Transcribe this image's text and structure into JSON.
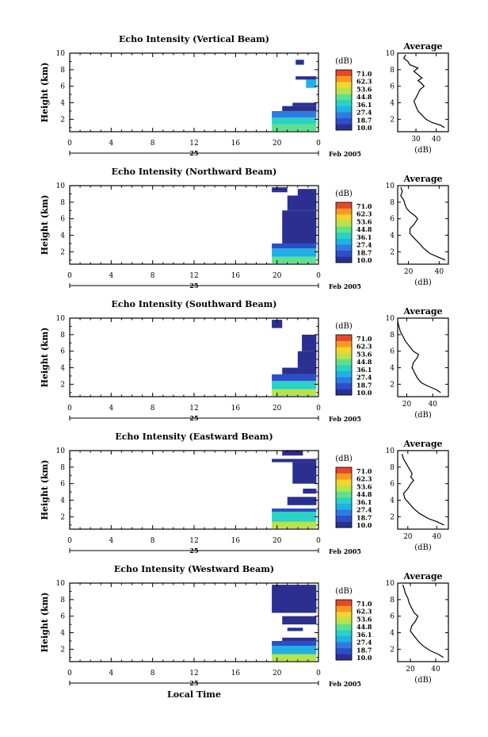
{
  "figure": {
    "xlabel": "Local Time",
    "date_day": "25",
    "date_month_year": "Feb 2005"
  },
  "colorbar": {
    "unit": "(dB)",
    "ticks": [
      "71.0",
      "62.3",
      "53.6",
      "44.8",
      "36.1",
      "27.4",
      "18.7",
      "10.0"
    ],
    "colors": [
      "#2b2f8f",
      "#2d4ec9",
      "#2f7be0",
      "#1fb1e6",
      "#29d2c4",
      "#5fe08d",
      "#b7e34b",
      "#f1d52f",
      "#f79a24",
      "#e5492a"
    ]
  },
  "chart_data": [
    {
      "type": "heatmap",
      "title": "Echo Intensity (Vertical Beam)",
      "ylabel": "Height (km)",
      "xlim": [
        0,
        24
      ],
      "ylim": [
        0.5,
        10
      ],
      "xticks": [
        "0",
        "4",
        "8",
        "12",
        "16",
        "20",
        "0"
      ],
      "yticks": [
        "2",
        "4",
        "6",
        "8",
        "10"
      ],
      "cells": [
        {
          "t0": 19.5,
          "t1": 23.8,
          "h0": 0.6,
          "h1": 1.4,
          "v": 45
        },
        {
          "t0": 19.5,
          "t1": 23.8,
          "h0": 1.4,
          "h1": 2.2,
          "v": 38
        },
        {
          "t0": 19.5,
          "t1": 23.8,
          "h0": 2.2,
          "h1": 3.0,
          "v": 26
        },
        {
          "t0": 20.5,
          "t1": 23.8,
          "h0": 3.0,
          "h1": 3.6,
          "v": 14
        },
        {
          "t0": 21.5,
          "t1": 23.8,
          "h0": 3.6,
          "h1": 4.0,
          "v": 12
        },
        {
          "t0": 21.8,
          "t1": 23.8,
          "h0": 6.8,
          "h1": 7.2,
          "v": 12
        },
        {
          "t0": 22.8,
          "t1": 23.8,
          "h0": 5.8,
          "h1": 6.8,
          "v": 33
        },
        {
          "t0": 21.8,
          "t1": 22.6,
          "h0": 8.6,
          "h1": 9.2,
          "v": 12
        }
      ],
      "avg": {
        "xlabel": "(dB)",
        "title": "Average",
        "xlim": [
          21,
          46
        ],
        "xticks": [
          {
            "v": 30,
            "label": "30"
          },
          {
            "v": 40,
            "label": "40"
          }
        ],
        "profile": [
          [
            44,
            1.0
          ],
          [
            42,
            1.3
          ],
          [
            38,
            1.6
          ],
          [
            35,
            2.0
          ],
          [
            33,
            2.5
          ],
          [
            31,
            3.0
          ],
          [
            30,
            3.6
          ],
          [
            29,
            4.2
          ],
          [
            30,
            4.6
          ],
          [
            31,
            5.1
          ],
          [
            32,
            5.6
          ],
          [
            34,
            6.0
          ],
          [
            33,
            6.3
          ],
          [
            31,
            6.7
          ],
          [
            33,
            7.0
          ],
          [
            31,
            7.4
          ],
          [
            29,
            7.8
          ],
          [
            31,
            8.2
          ],
          [
            27,
            8.6
          ],
          [
            26,
            9.0
          ],
          [
            24,
            9.4
          ],
          [
            25,
            9.8
          ]
        ]
      }
    },
    {
      "type": "heatmap",
      "title": "Echo Intensity (Northward Beam)",
      "ylabel": "Height (km)",
      "xlim": [
        0,
        24
      ],
      "ylim": [
        0.5,
        10
      ],
      "xticks": [
        "0",
        "4",
        "8",
        "12",
        "16",
        "20",
        "0"
      ],
      "yticks": [
        "2",
        "4",
        "6",
        "8",
        "10"
      ],
      "cells": [
        {
          "t0": 19.5,
          "t1": 23.8,
          "h0": 0.6,
          "h1": 1.4,
          "v": 42
        },
        {
          "t0": 19.5,
          "t1": 23.8,
          "h0": 1.4,
          "h1": 2.4,
          "v": 33
        },
        {
          "t0": 19.5,
          "t1": 23.8,
          "h0": 2.4,
          "h1": 3.0,
          "v": 22
        },
        {
          "t0": 20.5,
          "t1": 23.8,
          "h0": 3.0,
          "h1": 7.0,
          "v": 14
        },
        {
          "t0": 21.0,
          "t1": 23.8,
          "h0": 7.0,
          "h1": 8.8,
          "v": 12
        },
        {
          "t0": 22.0,
          "t1": 23.8,
          "h0": 8.8,
          "h1": 9.6,
          "v": 11
        },
        {
          "t0": 19.5,
          "t1": 21.0,
          "h0": 9.2,
          "h1": 9.8,
          "v": 11
        }
      ],
      "avg": {
        "xlabel": "(dB)",
        "title": "Average",
        "xlim": [
          13,
          46
        ],
        "xticks": [
          {
            "v": 20,
            "label": "20"
          },
          {
            "v": 40,
            "label": "40"
          }
        ],
        "profile": [
          [
            44,
            1.0
          ],
          [
            40,
            1.3
          ],
          [
            34,
            1.8
          ],
          [
            30,
            2.4
          ],
          [
            27,
            3.0
          ],
          [
            24,
            3.6
          ],
          [
            21,
            4.2
          ],
          [
            21,
            4.8
          ],
          [
            24,
            5.4
          ],
          [
            26,
            6.0
          ],
          [
            24,
            6.4
          ],
          [
            21,
            6.8
          ],
          [
            19,
            7.2
          ],
          [
            18,
            7.6
          ],
          [
            17,
            8.2
          ],
          [
            15,
            8.8
          ],
          [
            16,
            9.3
          ],
          [
            15,
            9.8
          ]
        ]
      }
    },
    {
      "type": "heatmap",
      "title": "Echo Intensity (Southward Beam)",
      "ylabel": "Height (km)",
      "xlim": [
        0,
        24
      ],
      "ylim": [
        0.5,
        10
      ],
      "xticks": [
        "0",
        "4",
        "8",
        "12",
        "16",
        "20",
        "0"
      ],
      "yticks": [
        "2",
        "4",
        "6",
        "8",
        "10"
      ],
      "cells": [
        {
          "t0": 19.5,
          "t1": 23.8,
          "h0": 0.6,
          "h1": 1.4,
          "v": 48
        },
        {
          "t0": 19.5,
          "t1": 23.8,
          "h0": 1.4,
          "h1": 2.4,
          "v": 36
        },
        {
          "t0": 19.5,
          "t1": 23.8,
          "h0": 2.4,
          "h1": 3.2,
          "v": 22
        },
        {
          "t0": 20.5,
          "t1": 23.8,
          "h0": 3.2,
          "h1": 4.0,
          "v": 16
        },
        {
          "t0": 22.0,
          "t1": 23.8,
          "h0": 4.0,
          "h1": 6.0,
          "v": 15
        },
        {
          "t0": 22.4,
          "t1": 23.8,
          "h0": 6.0,
          "h1": 8.0,
          "v": 12
        },
        {
          "t0": 19.5,
          "t1": 20.5,
          "h0": 8.8,
          "h1": 9.8,
          "v": 11
        }
      ],
      "avg": {
        "xlabel": "(dB)",
        "title": "Average",
        "xlim": [
          13,
          52
        ],
        "xticks": [
          {
            "v": 20,
            "label": "20"
          },
          {
            "v": 40,
            "label": "40"
          }
        ],
        "profile": [
          [
            46,
            1.0
          ],
          [
            42,
            1.4
          ],
          [
            36,
            1.8
          ],
          [
            31,
            2.2
          ],
          [
            28,
            2.8
          ],
          [
            26,
            3.4
          ],
          [
            24,
            4.0
          ],
          [
            25,
            4.6
          ],
          [
            28,
            5.2
          ],
          [
            29,
            5.6
          ],
          [
            25,
            6.0
          ],
          [
            22,
            6.6
          ],
          [
            19,
            7.2
          ],
          [
            17,
            7.8
          ],
          [
            15,
            8.4
          ],
          [
            14,
            9.0
          ],
          [
            13,
            9.6
          ]
        ]
      }
    },
    {
      "type": "heatmap",
      "title": "Echo Intensity (Eastward Beam)",
      "ylabel": "Height (km)",
      "xlim": [
        0,
        24
      ],
      "ylim": [
        0.5,
        10
      ],
      "xticks": [
        "0",
        "4",
        "8",
        "12",
        "16",
        "20",
        "0"
      ],
      "yticks": [
        "2",
        "4",
        "6",
        "8",
        "10"
      ],
      "cells": [
        {
          "t0": 19.5,
          "t1": 23.8,
          "h0": 0.6,
          "h1": 1.4,
          "v": 48
        },
        {
          "t0": 19.5,
          "t1": 23.8,
          "h0": 1.4,
          "h1": 2.6,
          "v": 36
        },
        {
          "t0": 19.5,
          "t1": 23.8,
          "h0": 2.6,
          "h1": 3.0,
          "v": 22
        },
        {
          "t0": 21.0,
          "t1": 23.8,
          "h0": 3.4,
          "h1": 4.4,
          "v": 14
        },
        {
          "t0": 22.5,
          "t1": 23.8,
          "h0": 4.8,
          "h1": 5.4,
          "v": 12
        },
        {
          "t0": 21.5,
          "t1": 23.8,
          "h0": 6.0,
          "h1": 8.6,
          "v": 13
        },
        {
          "t0": 19.5,
          "t1": 23.8,
          "h0": 8.6,
          "h1": 9.0,
          "v": 11
        },
        {
          "t0": 20.5,
          "t1": 22.5,
          "h0": 9.4,
          "h1": 10.0,
          "v": 12
        }
      ],
      "avg": {
        "xlabel": "(dB)",
        "title": "Average",
        "xlim": [
          13,
          48
        ],
        "xticks": [
          {
            "v": 20,
            "label": "20"
          },
          {
            "v": 40,
            "label": "40"
          }
        ],
        "profile": [
          [
            45,
            1.0
          ],
          [
            40,
            1.4
          ],
          [
            34,
            1.8
          ],
          [
            28,
            2.4
          ],
          [
            24,
            3.0
          ],
          [
            21,
            3.6
          ],
          [
            18,
            4.2
          ],
          [
            17,
            4.8
          ],
          [
            20,
            5.4
          ],
          [
            22,
            6.0
          ],
          [
            24,
            6.4
          ],
          [
            22,
            6.8
          ],
          [
            23,
            7.2
          ],
          [
            21,
            7.8
          ],
          [
            19,
            8.4
          ],
          [
            17,
            9.0
          ],
          [
            16,
            9.6
          ]
        ]
      }
    },
    {
      "type": "heatmap",
      "title": "Echo Intensity (Westward Beam)",
      "ylabel": "Height (km)",
      "xlim": [
        0,
        24
      ],
      "ylim": [
        0.5,
        10
      ],
      "xticks": [
        "0",
        "4",
        "8",
        "12",
        "16",
        "20",
        "0"
      ],
      "yticks": [
        "2",
        "4",
        "6",
        "8",
        "10"
      ],
      "cells": [
        {
          "t0": 19.5,
          "t1": 23.8,
          "h0": 0.6,
          "h1": 1.4,
          "v": 47
        },
        {
          "t0": 19.5,
          "t1": 23.8,
          "h0": 1.4,
          "h1": 2.4,
          "v": 34
        },
        {
          "t0": 19.5,
          "t1": 23.8,
          "h0": 2.4,
          "h1": 3.0,
          "v": 22
        },
        {
          "t0": 20.5,
          "t1": 23.8,
          "h0": 3.0,
          "h1": 3.4,
          "v": 14
        },
        {
          "t0": 21.0,
          "t1": 22.5,
          "h0": 4.2,
          "h1": 4.6,
          "v": 12
        },
        {
          "t0": 20.5,
          "t1": 23.8,
          "h0": 5.0,
          "h1": 6.0,
          "v": 13
        },
        {
          "t0": 19.5,
          "t1": 23.8,
          "h0": 6.4,
          "h1": 9.8,
          "v": 14
        }
      ],
      "avg": {
        "xlabel": "(dB)",
        "title": "Average",
        "xlim": [
          10,
          50
        ],
        "xticks": [
          {
            "v": 20,
            "label": "20"
          },
          {
            "v": 40,
            "label": "40"
          }
        ],
        "profile": [
          [
            46,
            1.0
          ],
          [
            42,
            1.4
          ],
          [
            36,
            1.8
          ],
          [
            30,
            2.4
          ],
          [
            26,
            3.0
          ],
          [
            23,
            3.6
          ],
          [
            20,
            4.2
          ],
          [
            21,
            4.8
          ],
          [
            24,
            5.4
          ],
          [
            26,
            6.0
          ],
          [
            23,
            6.4
          ],
          [
            21,
            7.0
          ],
          [
            19,
            7.6
          ],
          [
            18,
            8.2
          ],
          [
            16,
            8.8
          ],
          [
            15,
            9.4
          ],
          [
            14,
            9.8
          ]
        ]
      }
    }
  ]
}
